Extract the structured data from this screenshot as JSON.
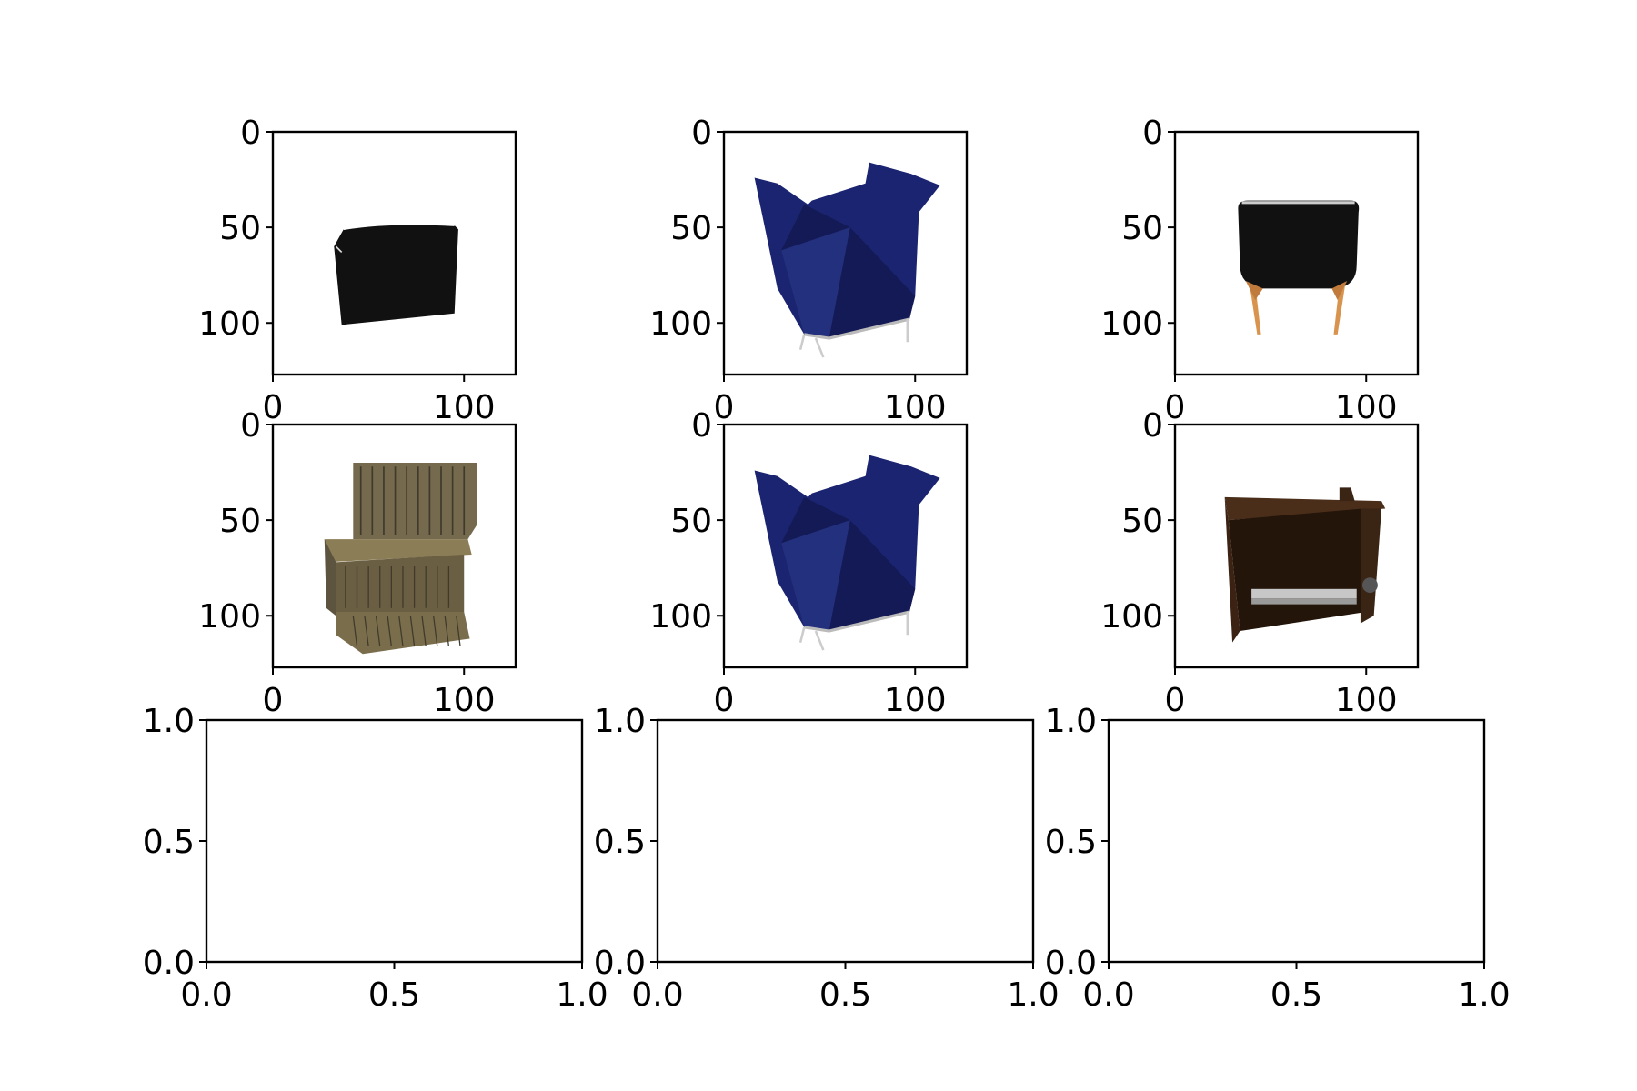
{
  "chart_data": [
    {
      "type": "image",
      "panel": "row1-col1",
      "icon": "black-cushion-object-icon",
      "x_ticks": [
        0,
        100
      ],
      "y_ticks": [
        0,
        50,
        100
      ],
      "xlim": [
        0,
        127
      ],
      "ylim": [
        127,
        0
      ]
    },
    {
      "type": "image",
      "panel": "row1-col2",
      "icon": "navy-armchair-icon",
      "x_ticks": [
        0,
        100
      ],
      "y_ticks": [
        0,
        50,
        100
      ],
      "xlim": [
        0,
        127
      ],
      "ylim": [
        127,
        0
      ]
    },
    {
      "type": "image",
      "panel": "row1-col3",
      "icon": "black-chair-back-icon",
      "x_ticks": [
        0,
        100
      ],
      "y_ticks": [
        0,
        50,
        100
      ],
      "xlim": [
        0,
        127
      ],
      "ylim": [
        127,
        0
      ]
    },
    {
      "type": "image",
      "panel": "row2-col1",
      "icon": "wooden-s-chair-icon",
      "x_ticks": [
        0,
        100
      ],
      "y_ticks": [
        0,
        50,
        100
      ],
      "xlim": [
        0,
        127
      ],
      "ylim": [
        127,
        0
      ]
    },
    {
      "type": "image",
      "panel": "row2-col2",
      "icon": "navy-armchair-icon",
      "x_ticks": [
        0,
        100
      ],
      "y_ticks": [
        0,
        50,
        100
      ],
      "xlim": [
        0,
        127
      ],
      "ylim": [
        127,
        0
      ]
    },
    {
      "type": "image",
      "panel": "row2-col3",
      "icon": "dark-wood-bench-icon",
      "x_ticks": [
        0,
        100
      ],
      "y_ticks": [
        0,
        50,
        100
      ],
      "xlim": [
        0,
        127
      ],
      "ylim": [
        127,
        0
      ]
    },
    {
      "type": "empty",
      "panel": "row3-col1",
      "x_tick_labels": [
        "0.0",
        "0.5",
        "1.0"
      ],
      "y_tick_labels": [
        "0.0",
        "0.5",
        "1.0"
      ],
      "xlim": [
        0,
        1
      ],
      "ylim": [
        0,
        1
      ]
    },
    {
      "type": "empty",
      "panel": "row3-col2",
      "x_tick_labels": [
        "0.0",
        "0.5",
        "1.0"
      ],
      "y_tick_labels": [
        "0.0",
        "0.5",
        "1.0"
      ],
      "xlim": [
        0,
        1
      ],
      "ylim": [
        0,
        1
      ]
    },
    {
      "type": "empty",
      "panel": "row3-col3",
      "x_tick_labels": [
        "0.0",
        "0.5",
        "1.0"
      ],
      "y_tick_labels": [
        "0.0",
        "0.5",
        "1.0"
      ],
      "xlim": [
        0,
        1
      ],
      "ylim": [
        0,
        1
      ]
    }
  ],
  "colors": {
    "axis": "#000000",
    "background": "#ffffff",
    "navy": "#1b2470",
    "black_object": "#111111",
    "wood_light": "#d8944f",
    "wood_dark": "#3a2414",
    "wood_texture": "#756a4d"
  }
}
